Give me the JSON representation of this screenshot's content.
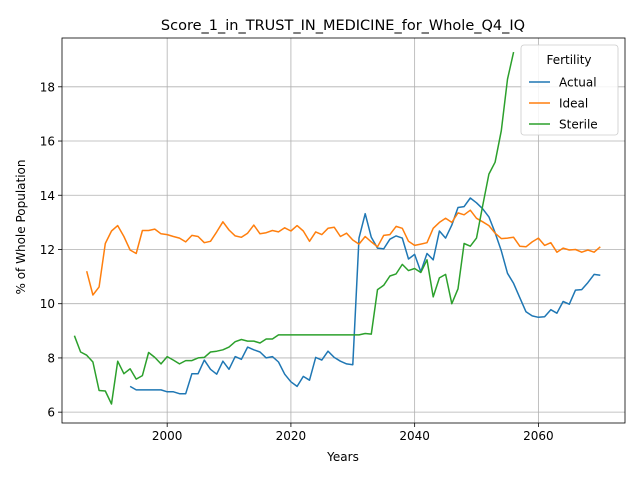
{
  "chart_data": {
    "type": "line",
    "title": "Score_1_in_TRUST_IN_MEDICINE_for_Whole_Q4_IQ",
    "xlabel": "Years",
    "ylabel": "% of Whole Population",
    "xlim": [
      1983,
      2074
    ],
    "ylim": [
      5.6,
      19.8
    ],
    "xticks": [
      2000,
      2020,
      2040,
      2060
    ],
    "yticks": [
      6,
      8,
      10,
      12,
      14,
      16,
      18
    ],
    "grid": true,
    "legend": {
      "title": "Fertility",
      "placement": "top-right"
    },
    "series": [
      {
        "name": "Actual",
        "color": "#1f77b4",
        "x": [
          1994,
          1995,
          1996,
          1997,
          1998,
          1999,
          2000,
          2001,
          2002,
          2003,
          2004,
          2005,
          2006,
          2007,
          2008,
          2009,
          2010,
          2011,
          2012,
          2013,
          2014,
          2015,
          2016,
          2017,
          2018,
          2019,
          2020,
          2021,
          2022,
          2023,
          2024,
          2025,
          2026,
          2027,
          2028,
          2029,
          2030,
          2031,
          2032,
          2033,
          2034,
          2035,
          2036,
          2037,
          2038,
          2039,
          2040,
          2041,
          2042,
          2043,
          2044,
          2045,
          2046,
          2047,
          2048,
          2049,
          2050,
          2051,
          2052,
          2053,
          2054,
          2055,
          2056,
          2057,
          2058,
          2059,
          2060,
          2061,
          2062,
          2063,
          2064,
          2065,
          2066,
          2067,
          2068,
          2069,
          2070
        ],
        "y": [
          6.95,
          6.82,
          6.82,
          6.82,
          6.82,
          6.82,
          6.75,
          6.75,
          6.68,
          6.68,
          7.42,
          7.42,
          7.92,
          7.58,
          7.4,
          7.88,
          7.58,
          8.05,
          7.95,
          8.4,
          8.3,
          8.22,
          8.0,
          8.05,
          7.85,
          7.4,
          7.12,
          6.95,
          7.32,
          7.18,
          8.02,
          7.92,
          8.25,
          8.02,
          7.88,
          7.78,
          7.75,
          12.42,
          13.32,
          12.45,
          12.05,
          12.02,
          12.38,
          12.5,
          12.42,
          11.65,
          11.82,
          11.18,
          11.85,
          11.62,
          12.68,
          12.42,
          12.9,
          13.55,
          13.58,
          13.9,
          13.72,
          13.5,
          13.2,
          12.62,
          11.95,
          11.12,
          10.75,
          10.22,
          9.7,
          9.55,
          9.5,
          9.52,
          9.78,
          9.65,
          10.08,
          9.98,
          10.5,
          10.52,
          10.78,
          11.08,
          11.05
        ]
      },
      {
        "name": "Ideal",
        "color": "#ff7f0e",
        "x": [
          1987,
          1988,
          1989,
          1990,
          1991,
          1992,
          1993,
          1994,
          1995,
          1996,
          1997,
          1998,
          1999,
          2000,
          2001,
          2002,
          2003,
          2004,
          2005,
          2006,
          2007,
          2008,
          2009,
          2010,
          2011,
          2012,
          2013,
          2014,
          2015,
          2016,
          2017,
          2018,
          2019,
          2020,
          2021,
          2022,
          2023,
          2024,
          2025,
          2026,
          2027,
          2028,
          2029,
          2030,
          2031,
          2032,
          2033,
          2034,
          2035,
          2036,
          2037,
          2038,
          2039,
          2040,
          2041,
          2042,
          2043,
          2044,
          2045,
          2046,
          2047,
          2048,
          2049,
          2050,
          2051,
          2052,
          2053,
          2054,
          2055,
          2056,
          2057,
          2058,
          2059,
          2060,
          2061,
          2062,
          2063,
          2064,
          2065,
          2066,
          2067,
          2068,
          2069,
          2070
        ],
        "y": [
          11.2,
          10.32,
          10.62,
          12.22,
          12.68,
          12.88,
          12.48,
          11.98,
          11.85,
          12.7,
          12.7,
          12.75,
          12.58,
          12.55,
          12.48,
          12.42,
          12.28,
          12.52,
          12.48,
          12.25,
          12.3,
          12.65,
          13.02,
          12.72,
          12.5,
          12.45,
          12.6,
          12.9,
          12.58,
          12.62,
          12.7,
          12.65,
          12.8,
          12.68,
          12.88,
          12.68,
          12.3,
          12.65,
          12.55,
          12.78,
          12.82,
          12.48,
          12.6,
          12.35,
          12.2,
          12.48,
          12.28,
          12.1,
          12.52,
          12.55,
          12.85,
          12.78,
          12.3,
          12.15,
          12.2,
          12.25,
          12.78,
          13.0,
          13.15,
          13.0,
          13.35,
          13.28,
          13.45,
          13.15,
          13.02,
          12.88,
          12.6,
          12.4,
          12.42,
          12.45,
          12.12,
          12.1,
          12.28,
          12.42,
          12.15,
          12.25,
          11.9,
          12.05,
          11.98,
          12.0,
          11.9,
          11.98,
          11.9,
          12.1
        ]
      },
      {
        "name": "Sterile",
        "color": "#2ca02c",
        "x": [
          1985,
          1986,
          1987,
          1988,
          1989,
          1990,
          1991,
          1992,
          1993,
          1994,
          1995,
          1996,
          1997,
          1998,
          1999,
          2000,
          2001,
          2002,
          2003,
          2004,
          2005,
          2006,
          2007,
          2008,
          2009,
          2010,
          2011,
          2012,
          2013,
          2014,
          2015,
          2016,
          2017,
          2018,
          2019,
          2020,
          2021,
          2022,
          2023,
          2024,
          2025,
          2026,
          2027,
          2028,
          2029,
          2030,
          2031,
          2032,
          2033,
          2034,
          2035,
          2036,
          2037,
          2038,
          2039,
          2040,
          2041,
          2042,
          2043,
          2044,
          2045,
          2046,
          2047,
          2048,
          2049,
          2050,
          2051,
          2052,
          2053,
          2054,
          2055,
          2056
        ],
        "y": [
          8.82,
          8.22,
          8.1,
          7.85,
          6.8,
          6.78,
          6.3,
          7.88,
          7.42,
          7.6,
          7.22,
          7.35,
          8.2,
          8.02,
          7.78,
          8.05,
          7.92,
          7.78,
          7.9,
          7.9,
          8.0,
          8.02,
          8.22,
          8.25,
          8.3,
          8.4,
          8.6,
          8.68,
          8.62,
          8.62,
          8.55,
          8.7,
          8.7,
          8.85,
          8.85,
          8.85,
          8.85,
          8.85,
          8.85,
          8.85,
          8.85,
          8.85,
          8.85,
          8.85,
          8.85,
          8.85,
          8.85,
          8.9,
          8.88,
          10.52,
          10.68,
          11.02,
          11.1,
          11.45,
          11.22,
          11.3,
          11.15,
          11.62,
          10.25,
          10.95,
          11.08,
          10.0,
          10.55,
          12.22,
          12.12,
          12.42,
          13.62,
          14.78,
          15.22,
          16.38,
          18.28,
          19.28
        ]
      }
    ]
  }
}
